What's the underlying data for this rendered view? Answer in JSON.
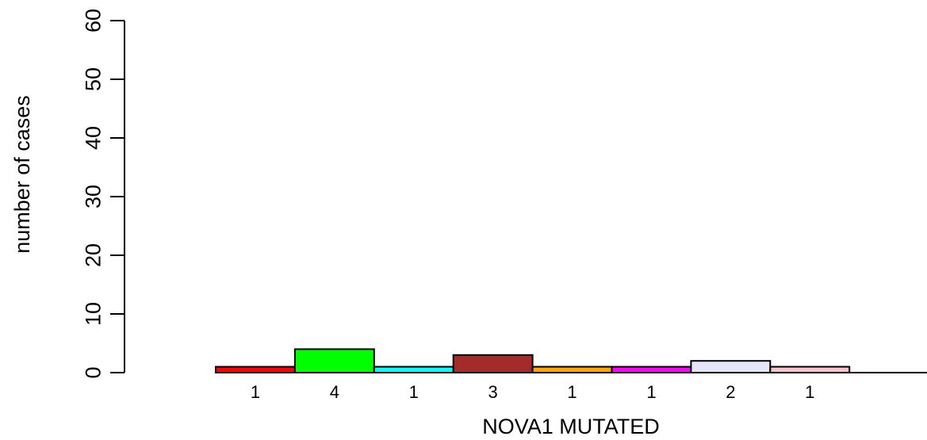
{
  "chart_data": {
    "type": "bar",
    "xlabel": "NOVA1 MUTATED",
    "ylabel": "number of cases",
    "ylim": [
      0,
      60
    ],
    "yticks": [
      0,
      10,
      20,
      30,
      40,
      50,
      60
    ],
    "categories": [
      "1",
      "4",
      "1",
      "3",
      "1",
      "1",
      "2",
      "1"
    ],
    "values": [
      1,
      4,
      1,
      3,
      1,
      1,
      2,
      1
    ],
    "colors": [
      "#ff0000",
      "#00ff00",
      "#00ffff",
      "#a52a2a",
      "#ffa500",
      "#ff00ff",
      "#e6e6fa",
      "#ffc0cb"
    ],
    "data_labels": [
      "1",
      "4",
      "1",
      "3",
      "1",
      "1",
      "2",
      "1"
    ],
    "grid": false,
    "legend": "none"
  }
}
